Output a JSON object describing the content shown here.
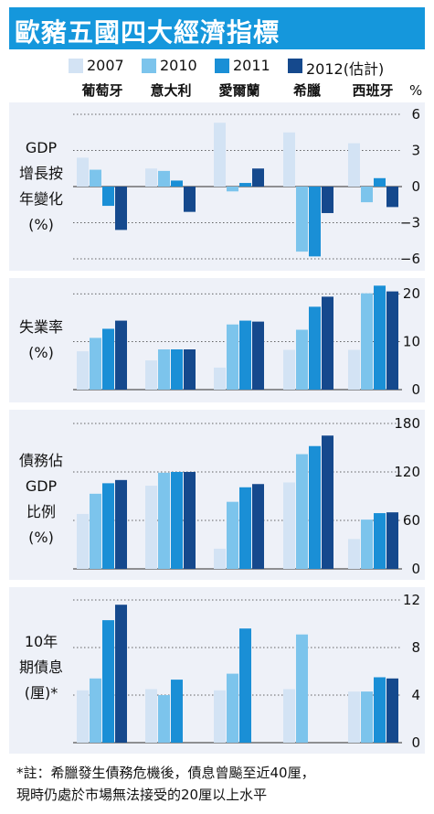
{
  "title": "歐豬五國四大經濟指標",
  "legend": [
    {
      "label": "2007",
      "color": "#d3e3f4"
    },
    {
      "label": "2010",
      "color": "#7cc4ec"
    },
    {
      "label": "2011",
      "color": "#1a8fd6"
    },
    {
      "label": "2012(估計)",
      "color": "#15498d"
    }
  ],
  "countries": [
    "葡萄牙",
    "意大利",
    "愛爾蘭",
    "希臘",
    "西班牙"
  ],
  "unit_label": "%",
  "footnote": [
    "*註：希臘發生債務危機後，債息曾飈至近40厘，",
    "現時仍處於市場無法接受的20厘以上水平"
  ],
  "chart_data": [
    {
      "type": "bar",
      "ylabel_lines": [
        "GDP",
        "增長按",
        "年變化",
        "(%)"
      ],
      "categories": [
        "葡萄牙",
        "意大利",
        "愛爾蘭",
        "希臘",
        "西班牙"
      ],
      "ylim": [
        -6,
        6
      ],
      "yticks": [
        6,
        3,
        0,
        -3,
        -6
      ],
      "ytick_labels": [
        "6",
        "3",
        "0",
        "−3",
        "−6"
      ],
      "series": [
        {
          "name": "2007",
          "values": [
            2.4,
            1.5,
            5.3,
            4.5,
            3.6
          ]
        },
        {
          "name": "2010",
          "values": [
            1.4,
            1.3,
            -0.4,
            -5.4,
            -1.3
          ]
        },
        {
          "name": "2011",
          "values": [
            -1.6,
            0.5,
            0.3,
            -5.8,
            0.7
          ]
        },
        {
          "name": "2012(估計)",
          "values": [
            -3.6,
            -2.1,
            1.5,
            -2.2,
            -1.7
          ]
        }
      ]
    },
    {
      "type": "bar",
      "ylabel_lines": [
        "失業率",
        "(%)"
      ],
      "categories": [
        "葡萄牙",
        "意大利",
        "愛爾蘭",
        "希臘",
        "西班牙"
      ],
      "ylim": [
        0,
        21
      ],
      "yticks": [
        20,
        10,
        0
      ],
      "ytick_labels": [
        "20",
        "10",
        "0"
      ],
      "series": [
        {
          "name": "2007",
          "values": [
            8.0,
            6.1,
            4.6,
            8.3,
            8.3
          ]
        },
        {
          "name": "2010",
          "values": [
            10.8,
            8.4,
            13.6,
            12.5,
            20.1
          ]
        },
        {
          "name": "2011",
          "values": [
            12.7,
            8.4,
            14.4,
            17.3,
            21.7
          ]
        },
        {
          "name": "2012(估計)",
          "values": [
            14.4,
            8.4,
            14.2,
            19.4,
            20.5
          ]
        }
      ]
    },
    {
      "type": "bar",
      "ylabel_lines": [
        "債務佔",
        "GDP",
        "比例",
        "(%)"
      ],
      "categories": [
        "葡萄牙",
        "意大利",
        "愛爾蘭",
        "希臘",
        "西班牙"
      ],
      "ylim": [
        0,
        180
      ],
      "yticks": [
        180,
        120,
        60,
        0
      ],
      "ytick_labels": [
        "180",
        "120",
        "60",
        "0"
      ],
      "series": [
        {
          "name": "2007",
          "values": [
            68,
            103,
            25,
            107,
            37
          ]
        },
        {
          "name": "2010",
          "values": [
            93,
            119,
            83,
            142,
            61
          ]
        },
        {
          "name": "2011",
          "values": [
            106,
            120,
            101,
            152,
            69
          ]
        },
        {
          "name": "2012(估計)",
          "values": [
            110,
            120,
            105,
            165,
            70
          ]
        }
      ]
    },
    {
      "type": "bar",
      "ylabel_lines": [
        "10年",
        "期債息",
        "(厘)*"
      ],
      "categories": [
        "葡萄牙",
        "意大利",
        "愛爾蘭",
        "希臘",
        "西班牙"
      ],
      "ylim": [
        0,
        12
      ],
      "yticks": [
        12,
        8,
        4,
        0
      ],
      "ytick_labels": [
        "12",
        "8",
        "4",
        "0"
      ],
      "series": [
        {
          "name": "2007",
          "values": [
            4.4,
            4.5,
            4.4,
            4.5,
            4.3
          ]
        },
        {
          "name": "2010",
          "values": [
            5.4,
            4.0,
            5.8,
            9.1,
            4.3
          ]
        },
        {
          "name": "2011",
          "values": [
            10.3,
            5.3,
            9.6,
            0,
            5.5
          ]
        },
        {
          "name": "2012(估計)",
          "values": [
            11.6,
            0,
            0,
            0,
            5.4
          ]
        }
      ]
    }
  ]
}
